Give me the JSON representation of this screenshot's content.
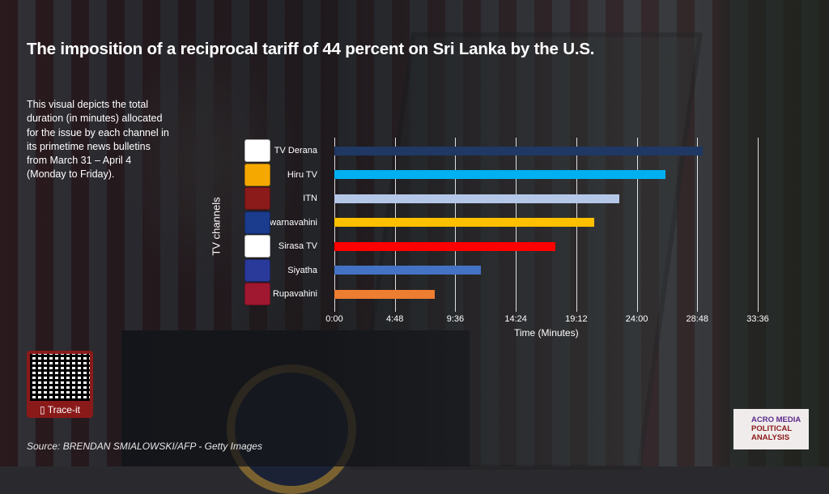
{
  "title": "The imposition of a reciprocal tariff of 44 percent on Sri Lanka by the U.S.",
  "description": "This visual depicts the total duration  (in minutes) allocated for the issue by each channel in its primetime news bulletins from March 31 – April 4 (Monday to Friday).",
  "qr": {
    "label": "Trace-it",
    "icon": "phone-icon"
  },
  "source": "Source: BRENDAN SMIALOWSKI/AFP - Getty Images",
  "brand": {
    "line1": "ACRO MEDIA",
    "line2": "POLITICAL",
    "line3": "ANALYSIS"
  },
  "chart_data": {
    "type": "bar",
    "orientation": "horizontal",
    "title": "",
    "ylabel": "TV channels",
    "xlabel": "Time (Minutes)",
    "categories": [
      "TV Derana",
      "Hiru TV",
      "ITN",
      "Swarnavahini",
      "Sirasa TV",
      "Siyatha",
      "Rupavahini"
    ],
    "values_minutes": [
      29.2,
      26.3,
      22.6,
      20.65,
      17.55,
      11.6,
      7.95
    ],
    "colors": [
      "#1f3864",
      "#00b0f0",
      "#b4c7e7",
      "#ffc000",
      "#ff0000",
      "#4472c4",
      "#ed7d31"
    ],
    "logo_colors": [
      "#ffffff",
      "#f5a800",
      "#8b1a1a",
      "#1b3b8c",
      "#ffffff",
      "#2a3a9a",
      "#a01830"
    ],
    "xticks": [
      "0:00",
      "4:48",
      "9:36",
      "14:24",
      "19:12",
      "24:00",
      "28:48",
      "33:36"
    ],
    "xlim": [
      0,
      33.6
    ],
    "grid": true
  }
}
